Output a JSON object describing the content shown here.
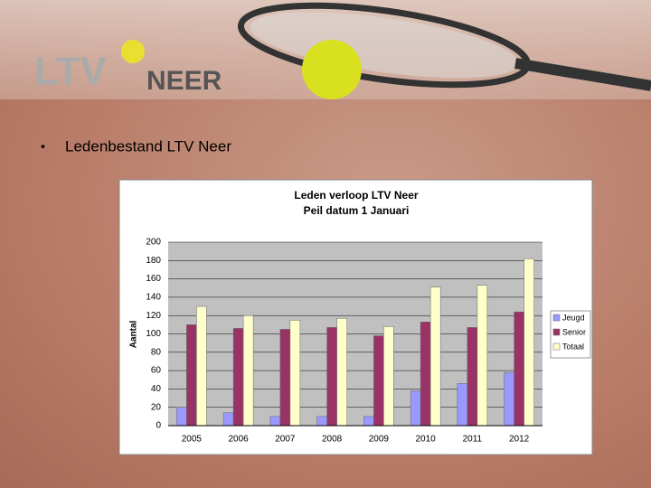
{
  "logo": {
    "left": "LTV",
    "right": "NEER"
  },
  "bullet": "Ledenbestand LTV Neer",
  "chart_data": {
    "type": "bar",
    "title": "Leden verloop LTV Neer",
    "subtitle": "Peil datum 1 Januari",
    "y_label": "Aantal",
    "categories": [
      "2005",
      "2006",
      "2007",
      "2008",
      "2009",
      "2010",
      "2011",
      "2012"
    ],
    "series": [
      {
        "name": "Jeugd",
        "color": "#9999ff",
        "values": [
          20,
          14,
          10,
          10,
          10,
          38,
          46,
          58
        ]
      },
      {
        "name": "Senior",
        "color": "#993366",
        "values": [
          110,
          106,
          105,
          107,
          98,
          113,
          107,
          124
        ]
      },
      {
        "name": "Totaal",
        "color": "#ffffcc",
        "values": [
          130,
          120,
          115,
          117,
          108,
          151,
          153,
          182
        ]
      }
    ],
    "ylim": [
      0,
      200
    ],
    "yticks": [
      0,
      20,
      40,
      60,
      80,
      100,
      120,
      140,
      160,
      180,
      200
    ],
    "grid": true,
    "legend": "right"
  }
}
